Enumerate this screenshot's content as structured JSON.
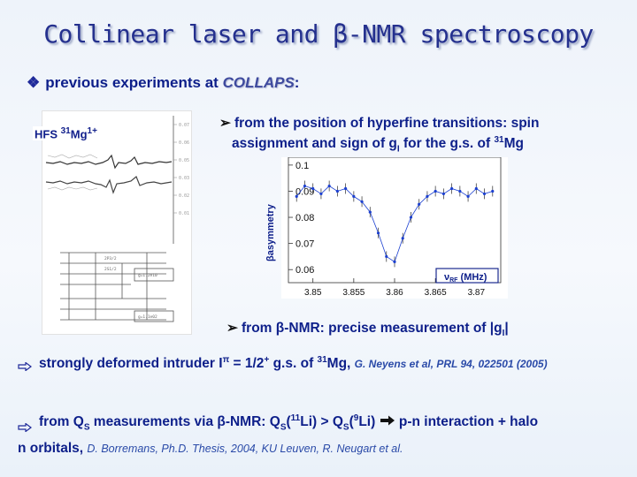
{
  "title": "Collinear laser and β-NMR spectroscopy",
  "bullet1": {
    "prefix": "previous experiments at ",
    "collaps": "COLLAPS",
    "suffix": ":"
  },
  "hfs_label": {
    "a": "HFS ",
    "mass": "31",
    "b": "Mg",
    "charge": "1+"
  },
  "bullet2": {
    "line1": "from the position of hyperfine transitions: spin",
    "line2a": "assignment and sign of g",
    "line2b": "I",
    "line2c": " for the g.s. of ",
    "line2d": "31",
    "line2e": "Mg"
  },
  "plot": {
    "ylabel": "βasymmetry",
    "xlabel": "ν",
    "xlabel_sub": "RF",
    "xlabel_unit": " (MHz)"
  },
  "chart_data": {
    "type": "scatter",
    "x_ticks": [
      "3.85",
      "3.855",
      "3.86",
      "3.865",
      "3.87"
    ],
    "y_ticks": [
      "0.06",
      "0.07",
      "0.08",
      "0.09",
      "0.1"
    ],
    "xlim": [
      3.847,
      3.873
    ],
    "ylim": [
      0.055,
      0.103
    ],
    "x": [
      3.848,
      3.849,
      3.85,
      3.851,
      3.852,
      3.853,
      3.854,
      3.855,
      3.856,
      3.857,
      3.858,
      3.859,
      3.86,
      3.861,
      3.862,
      3.863,
      3.864,
      3.865,
      3.866,
      3.867,
      3.868,
      3.869,
      3.87,
      3.871,
      3.872
    ],
    "y": [
      0.088,
      0.092,
      0.091,
      0.089,
      0.092,
      0.09,
      0.091,
      0.088,
      0.086,
      0.082,
      0.074,
      0.065,
      0.063,
      0.072,
      0.08,
      0.085,
      0.088,
      0.09,
      0.089,
      0.091,
      0.09,
      0.088,
      0.091,
      0.089,
      0.09
    ]
  },
  "bullet3": {
    "a": "from β-NMR: precise measurement of |g",
    "b": "I",
    "c": "|"
  },
  "bullet4": {
    "a": "strongly deformed intruder I",
    "pi": "π",
    "b": " = 1/2",
    "sup": "+",
    "c": " g.s. of ",
    "mass": "31",
    "d": "Mg, ",
    "ref": "G. Neyens et al, PRL 94, 022501 (2005)"
  },
  "bullet5": {
    "a": "from Q",
    "s1": "S",
    "b": " measurements via β-NMR: Q",
    "s2": "S",
    "c": "(",
    "m1": "11",
    "d": "Li) > Q",
    "s3": "S",
    "e": "(",
    "m2": "9",
    "f": "Li)",
    "g": " p-n interaction + halo",
    "line2": "n orbitals, ",
    "ref": "D. Borremans, Ph.D. Thesis, 2004, KU Leuven, R. Neugart et al."
  },
  "colors": {
    "text": "#0d1f8a",
    "title": "#24308e",
    "data": "#1b3fd0"
  }
}
